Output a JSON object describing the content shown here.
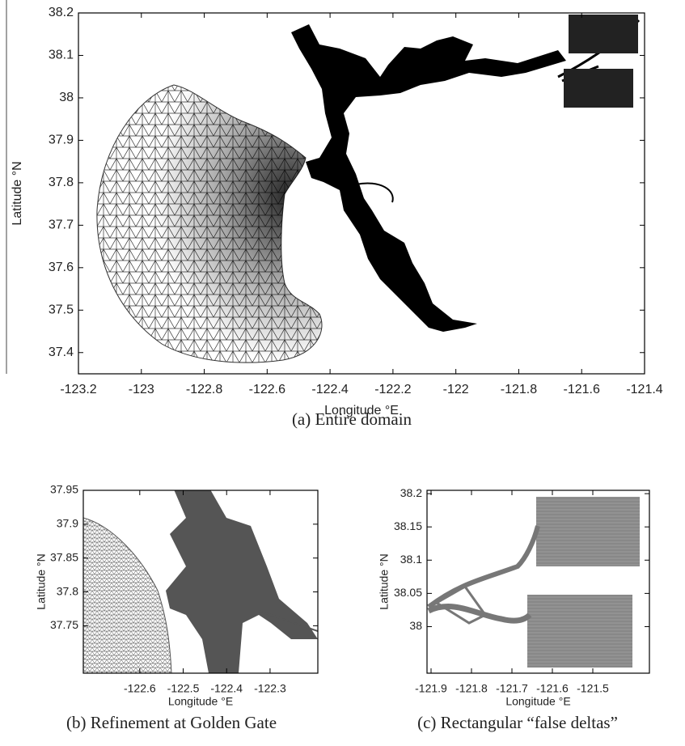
{
  "chart_data": [
    {
      "type": "map",
      "caption": "(a) Entire domain",
      "xlabel": "Longitude °E",
      "ylabel": "Latitude °N",
      "xlim": [
        -123.2,
        -121.4
      ],
      "xticks": [
        -123.2,
        -123,
        -122.8,
        -122.6,
        -122.4,
        -122.2,
        -122,
        -121.8,
        -121.6,
        -121.4
      ],
      "ylim": [
        37.35,
        38.2
      ],
      "yticks": [
        37.4,
        37.5,
        37.6,
        37.7,
        37.8,
        37.9,
        38,
        38.1,
        38.2
      ]
    },
    {
      "type": "map",
      "caption": "(b) Refinement at Golden Gate",
      "xlabel": "Longitude °E",
      "ylabel": "Latitude °N",
      "xlim": [
        -122.73,
        -122.19
      ],
      "xticks": [
        -122.6,
        -122.5,
        -122.4,
        -122.3
      ],
      "ylim": [
        37.68,
        37.95
      ],
      "yticks": [
        37.75,
        37.8,
        37.85,
        37.9,
        37.95
      ]
    },
    {
      "type": "map",
      "caption": "(c) Rectangular “false deltas”",
      "xlabel": "Longitude °E",
      "ylabel": "Latitude °N",
      "xlim": [
        -121.91,
        -121.36
      ],
      "xticks": [
        -121.9,
        -121.8,
        -121.7,
        -121.6,
        -121.5
      ],
      "ylim": [
        37.93,
        38.205
      ],
      "yticks": [
        38,
        38.05,
        38.1,
        38.15,
        38.2
      ]
    }
  ]
}
